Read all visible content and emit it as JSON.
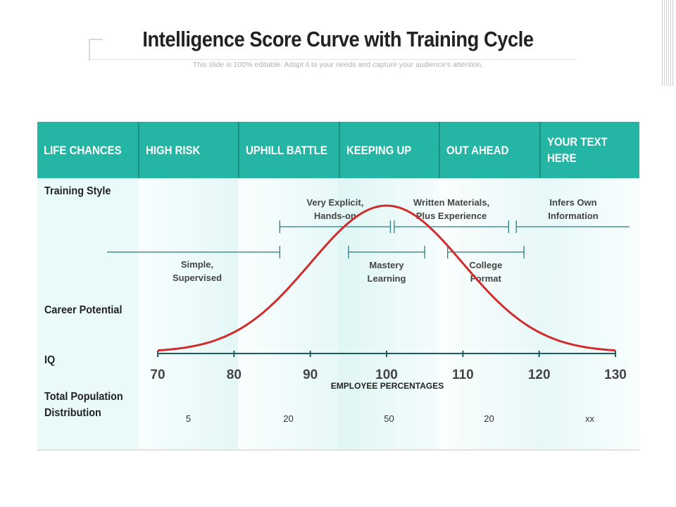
{
  "title": "Intelligence Score Curve with Training Cycle",
  "subtitle": "This slide is 100% editable. Adapt it to your needs and capture your audience's attention.",
  "colors": {
    "header": "#25b5a4",
    "curve": "#cf2c2c",
    "bracket": "#2a7d82",
    "axis": "#1a5c60"
  },
  "header": {
    "cells": [
      "LIFE CHANCES",
      "HIGH RISK",
      "UPHILL BATTLE",
      "KEEPING UP",
      "OUT AHEAD",
      "YOUR TEXT HERE"
    ]
  },
  "rows": {
    "training_style": "Training Style",
    "career_potential": "Career Potential",
    "iq": "IQ",
    "population": "Total Population Distribution"
  },
  "training_labels": [
    {
      "text": "Simple,\nSupervised",
      "start": 70,
      "end": 86
    },
    {
      "text": "Very Explicit,\nHands-on",
      "start": 86,
      "end": 100.5
    },
    {
      "text": "Mastery\nLearning",
      "start": 95,
      "end": 105
    },
    {
      "text": "Written Materials,\nPlus Experience",
      "start": 101,
      "end": 116
    },
    {
      "text": "College\nFormat",
      "start": 108,
      "end": 118
    },
    {
      "text": "Infers Own\nInformation",
      "start": 117,
      "end": 131
    }
  ],
  "chart_data": {
    "type": "line",
    "x_ticks": [
      70,
      80,
      90,
      100,
      110,
      120,
      130
    ],
    "xlabel": "EMPLOYEE PERCENTAGES",
    "curve": {
      "kind": "normal",
      "mean": 100,
      "sd": 10
    }
  },
  "population": {
    "values": [
      "5",
      "20",
      "50",
      "20",
      "xx"
    ]
  }
}
